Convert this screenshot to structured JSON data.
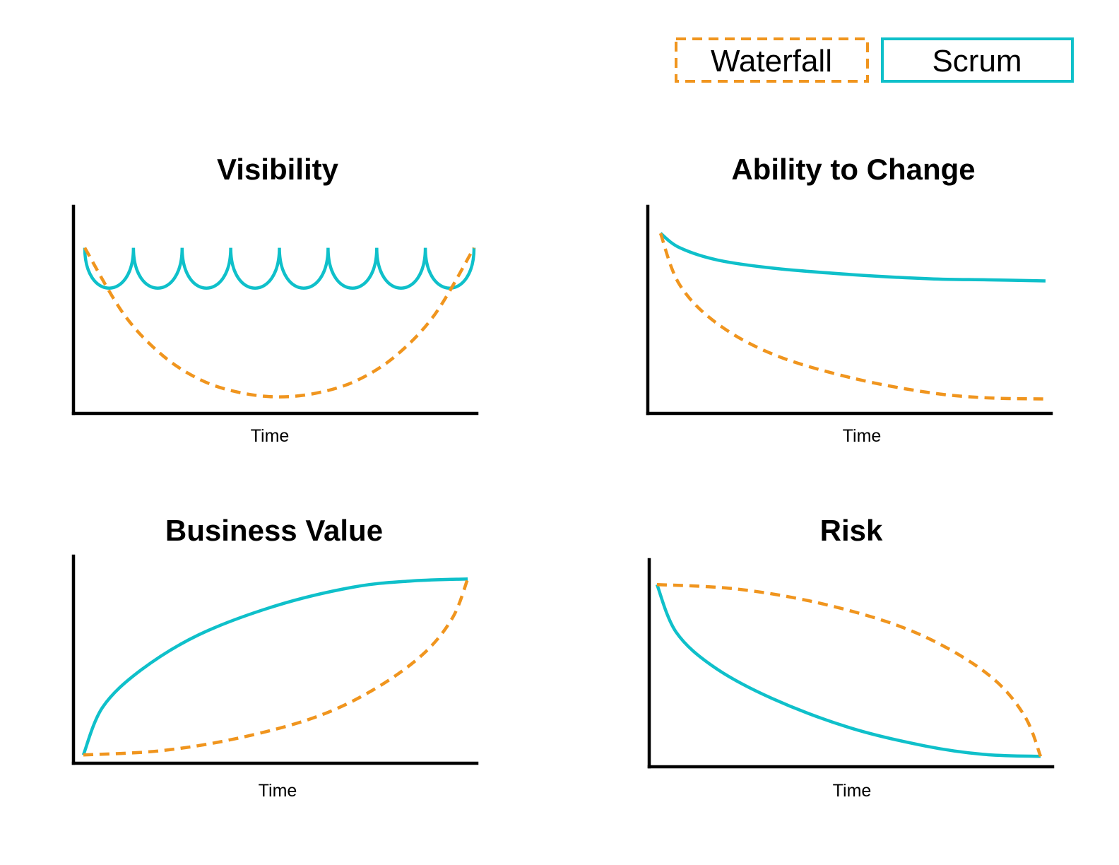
{
  "colors": {
    "waterfall": "#F0951E",
    "scrum": "#0FC0CA"
  },
  "legend": {
    "waterfall_label": "Waterfall",
    "scrum_label": "Scrum"
  },
  "chart_data": [
    {
      "type": "line",
      "title": "Visibility",
      "xlabel": "Time",
      "ylabel": "",
      "xlim": [
        0,
        1
      ],
      "ylim": [
        0,
        1
      ],
      "series": [
        {
          "name": "Scrum",
          "style": "solid",
          "shape": "scallops",
          "x": [
            0.0,
            1.0
          ],
          "y": [
            0.8,
            0.8
          ],
          "scallop_count": 8,
          "scallop_depth": 0.2
        },
        {
          "name": "Waterfall",
          "style": "dashed",
          "x": [
            0.0,
            0.1,
            0.2,
            0.3,
            0.4,
            0.5,
            0.6,
            0.7,
            0.8,
            0.9,
            1.0
          ],
          "y": [
            0.8,
            0.48,
            0.28,
            0.16,
            0.1,
            0.08,
            0.1,
            0.16,
            0.28,
            0.48,
            0.8
          ]
        }
      ]
    },
    {
      "type": "line",
      "title": "Ability to Change",
      "xlabel": "Time",
      "ylabel": "",
      "xlim": [
        0,
        1
      ],
      "ylim": [
        0,
        1
      ],
      "series": [
        {
          "name": "Scrum",
          "style": "solid",
          "x": [
            0.0,
            0.05,
            0.15,
            0.3,
            0.5,
            0.7,
            0.85,
            1.0
          ],
          "y": [
            0.87,
            0.8,
            0.74,
            0.7,
            0.67,
            0.65,
            0.645,
            0.64
          ]
        },
        {
          "name": "Waterfall",
          "style": "dashed",
          "x": [
            0.0,
            0.05,
            0.15,
            0.3,
            0.5,
            0.7,
            0.85,
            1.0
          ],
          "y": [
            0.87,
            0.62,
            0.43,
            0.28,
            0.17,
            0.1,
            0.075,
            0.07
          ]
        }
      ]
    },
    {
      "type": "line",
      "title": "Business Value",
      "xlabel": "Time",
      "ylabel": "",
      "xlim": [
        0,
        1
      ],
      "ylim": [
        0,
        1
      ],
      "series": [
        {
          "name": "Scrum",
          "style": "solid",
          "x": [
            0.0,
            0.05,
            0.15,
            0.3,
            0.5,
            0.7,
            0.85,
            1.0
          ],
          "y": [
            0.04,
            0.27,
            0.45,
            0.62,
            0.76,
            0.85,
            0.88,
            0.89
          ]
        },
        {
          "name": "Waterfall",
          "style": "dashed",
          "x": [
            0.0,
            0.2,
            0.4,
            0.6,
            0.75,
            0.88,
            0.96,
            1.0
          ],
          "y": [
            0.04,
            0.06,
            0.12,
            0.22,
            0.35,
            0.52,
            0.7,
            0.89
          ]
        }
      ]
    },
    {
      "type": "line",
      "title": "Risk",
      "xlabel": "Time",
      "ylabel": "",
      "xlim": [
        0,
        1
      ],
      "ylim": [
        0,
        1
      ],
      "series": [
        {
          "name": "Scrum",
          "style": "solid",
          "x": [
            0.0,
            0.05,
            0.15,
            0.3,
            0.5,
            0.7,
            0.85,
            1.0
          ],
          "y": [
            0.88,
            0.65,
            0.48,
            0.33,
            0.19,
            0.1,
            0.06,
            0.05
          ]
        },
        {
          "name": "Waterfall",
          "style": "dashed",
          "x": [
            0.0,
            0.2,
            0.4,
            0.6,
            0.75,
            0.88,
            0.96,
            1.0
          ],
          "y": [
            0.88,
            0.86,
            0.8,
            0.7,
            0.58,
            0.42,
            0.24,
            0.05
          ]
        }
      ]
    }
  ]
}
